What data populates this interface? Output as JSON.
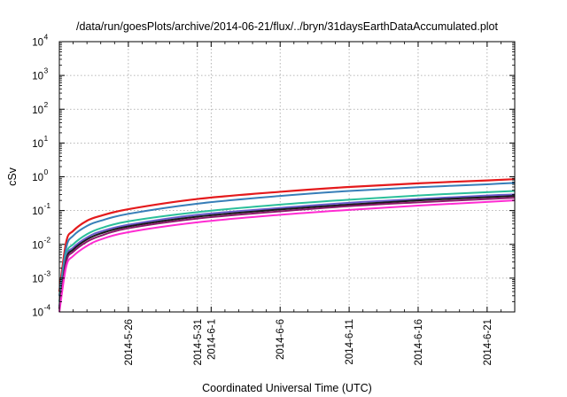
{
  "chart_data": {
    "type": "line",
    "title": "/data/run/goesPlots/archive/2014-06-21/flux/../bryn/31daysEarthDataAccumulated.plot",
    "xlabel": "Coordinated Universal Time (UTC)",
    "ylabel": "cSv",
    "y_scale": "log",
    "ylim": [
      0.0001,
      10000
    ],
    "xlim": [
      "2014-05-21",
      "2014-06-23"
    ],
    "grid": true,
    "legend": "none",
    "y_ticks": [
      {
        "base": "10",
        "exp": "-4",
        "value": 0.0001
      },
      {
        "base": "10",
        "exp": "-3",
        "value": 0.001
      },
      {
        "base": "10",
        "exp": "-2",
        "value": 0.01
      },
      {
        "base": "10",
        "exp": "-1",
        "value": 0.1
      },
      {
        "base": "10",
        "exp": "0",
        "value": 1
      },
      {
        "base": "10",
        "exp": "1",
        "value": 10
      },
      {
        "base": "10",
        "exp": "2",
        "value": 100
      },
      {
        "base": "10",
        "exp": "3",
        "value": 1000
      },
      {
        "base": "10",
        "exp": "4",
        "value": 10000
      }
    ],
    "x_ticks": [
      {
        "date": "2014-05-26",
        "label": "2014-5-26"
      },
      {
        "date": "2014-05-31",
        "label": "2014-5-31"
      },
      {
        "date": "2014-06-01",
        "label": "2014-6-1"
      },
      {
        "date": "2014-06-06",
        "label": "2014-6-6"
      },
      {
        "date": "2014-06-11",
        "label": "2014-6-11"
      },
      {
        "date": "2014-06-16",
        "label": "2014-6-16"
      },
      {
        "date": "2014-06-21",
        "label": "2014-6-21"
      }
    ],
    "x_minor_ticks": [
      "2014-05-22",
      "2014-05-23",
      "2014-05-24",
      "2014-05-25",
      "2014-05-27",
      "2014-05-28",
      "2014-05-29",
      "2014-05-30",
      "2014-06-02",
      "2014-06-03",
      "2014-06-04",
      "2014-06-05",
      "2014-06-07",
      "2014-06-08",
      "2014-06-09",
      "2014-06-10",
      "2014-06-12",
      "2014-06-13",
      "2014-06-14",
      "2014-06-15",
      "2014-06-17",
      "2014-06-18",
      "2014-06-19",
      "2014-06-20",
      "2014-06-22"
    ],
    "series": [
      {
        "color": "#e41a1c",
        "width": 2.2,
        "points": [
          [
            "2014-05-21T00:00",
            0.0004
          ],
          [
            "2014-05-21T12:00",
            0.012
          ],
          [
            "2014-05-22T00:00",
            0.025
          ],
          [
            "2014-05-23T00:00",
            0.05
          ],
          [
            "2014-05-24T00:00",
            0.07
          ],
          [
            "2014-05-26T00:00",
            0.11
          ],
          [
            "2014-05-31T00:00",
            0.22
          ],
          [
            "2014-06-06T00:00",
            0.36
          ],
          [
            "2014-06-11T00:00",
            0.5
          ],
          [
            "2014-06-16T00:00",
            0.64
          ],
          [
            "2014-06-21T00:00",
            0.78
          ],
          [
            "2014-06-23T00:00",
            0.85
          ]
        ]
      },
      {
        "color": "#377eb8",
        "width": 2.0,
        "points": [
          [
            "2014-05-21T00:00",
            0.0003
          ],
          [
            "2014-05-21T12:00",
            0.008
          ],
          [
            "2014-05-22T00:00",
            0.018
          ],
          [
            "2014-05-23T00:00",
            0.035
          ],
          [
            "2014-05-24T00:00",
            0.05
          ],
          [
            "2014-05-26T00:00",
            0.08
          ],
          [
            "2014-05-31T00:00",
            0.16
          ],
          [
            "2014-06-06T00:00",
            0.27
          ],
          [
            "2014-06-11T00:00",
            0.38
          ],
          [
            "2014-06-16T00:00",
            0.49
          ],
          [
            "2014-06-21T00:00",
            0.6
          ],
          [
            "2014-06-23T00:00",
            0.66
          ]
        ]
      },
      {
        "color": "#2bbf9a",
        "width": 2.0,
        "points": [
          [
            "2014-05-21T00:00",
            0.0002
          ],
          [
            "2014-05-21T12:00",
            0.005
          ],
          [
            "2014-05-22T00:00",
            0.01
          ],
          [
            "2014-05-23T00:00",
            0.02
          ],
          [
            "2014-05-24T00:00",
            0.03
          ],
          [
            "2014-05-26T00:00",
            0.048
          ],
          [
            "2014-05-31T00:00",
            0.09
          ],
          [
            "2014-06-06T00:00",
            0.15
          ],
          [
            "2014-06-11T00:00",
            0.21
          ],
          [
            "2014-06-16T00:00",
            0.28
          ],
          [
            "2014-06-21T00:00",
            0.35
          ],
          [
            "2014-06-23T00:00",
            0.38
          ]
        ]
      },
      {
        "color": "#6a5acd",
        "width": 2.0,
        "points": [
          [
            "2014-05-21T00:00",
            0.00015
          ],
          [
            "2014-05-21T12:00",
            0.004
          ],
          [
            "2014-05-22T00:00",
            0.008
          ],
          [
            "2014-05-23T00:00",
            0.016
          ],
          [
            "2014-05-24T00:00",
            0.024
          ],
          [
            "2014-05-26T00:00",
            0.038
          ],
          [
            "2014-05-31T00:00",
            0.075
          ],
          [
            "2014-06-06T00:00",
            0.12
          ],
          [
            "2014-06-11T00:00",
            0.17
          ],
          [
            "2014-06-16T00:00",
            0.22
          ],
          [
            "2014-06-21T00:00",
            0.28
          ],
          [
            "2014-06-23T00:00",
            0.3
          ]
        ]
      },
      {
        "color": "#1a1a1a",
        "width": 2.0,
        "points": [
          [
            "2014-05-21T00:00",
            0.00013
          ],
          [
            "2014-05-21T12:00",
            0.0035
          ],
          [
            "2014-05-22T00:00",
            0.007
          ],
          [
            "2014-05-23T00:00",
            0.014
          ],
          [
            "2014-05-24T00:00",
            0.021
          ],
          [
            "2014-05-26T00:00",
            0.034
          ],
          [
            "2014-05-31T00:00",
            0.066
          ],
          [
            "2014-06-06T00:00",
            0.108
          ],
          [
            "2014-06-11T00:00",
            0.15
          ],
          [
            "2014-06-16T00:00",
            0.2
          ],
          [
            "2014-06-21T00:00",
            0.25
          ],
          [
            "2014-06-23T00:00",
            0.27
          ]
        ]
      },
      {
        "color": "#8b1a6b",
        "width": 2.0,
        "points": [
          [
            "2014-05-21T00:00",
            0.00012
          ],
          [
            "2014-05-21T12:00",
            0.003
          ],
          [
            "2014-05-22T00:00",
            0.006
          ],
          [
            "2014-05-23T00:00",
            0.012
          ],
          [
            "2014-05-24T00:00",
            0.018
          ],
          [
            "2014-05-26T00:00",
            0.03
          ],
          [
            "2014-05-31T00:00",
            0.058
          ],
          [
            "2014-06-06T00:00",
            0.095
          ],
          [
            "2014-06-11T00:00",
            0.135
          ],
          [
            "2014-06-16T00:00",
            0.175
          ],
          [
            "2014-06-21T00:00",
            0.22
          ],
          [
            "2014-06-23T00:00",
            0.24
          ]
        ]
      },
      {
        "color": "#ff2bd2",
        "width": 2.0,
        "points": [
          [
            "2014-05-21T00:00",
            0.0001
          ],
          [
            "2014-05-21T12:00",
            0.0022
          ],
          [
            "2014-05-22T00:00",
            0.0045
          ],
          [
            "2014-05-23T00:00",
            0.009
          ],
          [
            "2014-05-24T00:00",
            0.014
          ],
          [
            "2014-05-26T00:00",
            0.023
          ],
          [
            "2014-05-31T00:00",
            0.045
          ],
          [
            "2014-06-06T00:00",
            0.075
          ],
          [
            "2014-06-11T00:00",
            0.105
          ],
          [
            "2014-06-16T00:00",
            0.14
          ],
          [
            "2014-06-21T00:00",
            0.18
          ],
          [
            "2014-06-23T00:00",
            0.2
          ]
        ]
      }
    ]
  }
}
